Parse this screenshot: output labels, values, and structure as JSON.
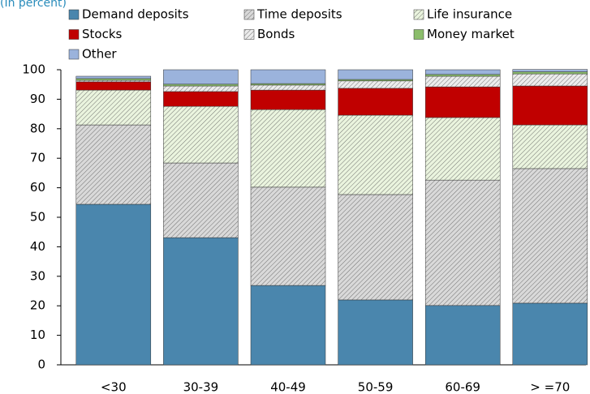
{
  "chart_data": {
    "type": "stacked_bar",
    "subtitle": "(In percent)",
    "categories": [
      "<30",
      "30-39",
      "40-49",
      "50-59",
      "60-69",
      "> =70"
    ],
    "series": [
      {
        "name": "Demand deposits",
        "color": "#4a86ad",
        "hatched": false,
        "values": [
          54.4,
          43.1,
          26.9,
          22.0,
          20.1,
          20.9
        ]
      },
      {
        "name": "Time deposits",
        "color": "#d9d9d9",
        "hatched": true,
        "values": [
          26.9,
          25.3,
          33.3,
          35.7,
          42.5,
          45.6
        ]
      },
      {
        "name": "Life insurance",
        "color": "#eaf4de",
        "hatched": true,
        "values": [
          11.8,
          19.2,
          26.3,
          26.9,
          21.2,
          14.8
        ]
      },
      {
        "name": "Stocks",
        "color": "#c00000",
        "hatched": false,
        "values": [
          2.8,
          5.0,
          6.6,
          9.1,
          10.4,
          13.2
        ]
      },
      {
        "name": "Bonds",
        "color": "#ececec",
        "hatched": true,
        "values": [
          0.5,
          1.9,
          1.7,
          2.5,
          3.6,
          4.1
        ]
      },
      {
        "name": "Money market",
        "color": "#8bbd6b",
        "hatched": false,
        "values": [
          0.6,
          0.6,
          0.5,
          0.5,
          0.6,
          0.7
        ]
      },
      {
        "name": "Other",
        "color": "#9bb3dc",
        "hatched": false,
        "values": [
          0.8,
          4.9,
          4.7,
          3.3,
          1.6,
          0.8
        ]
      }
    ],
    "ylim": [
      0,
      100
    ],
    "yticks": [
      0,
      10,
      20,
      30,
      40,
      50,
      60,
      70,
      80,
      90,
      100
    ]
  }
}
